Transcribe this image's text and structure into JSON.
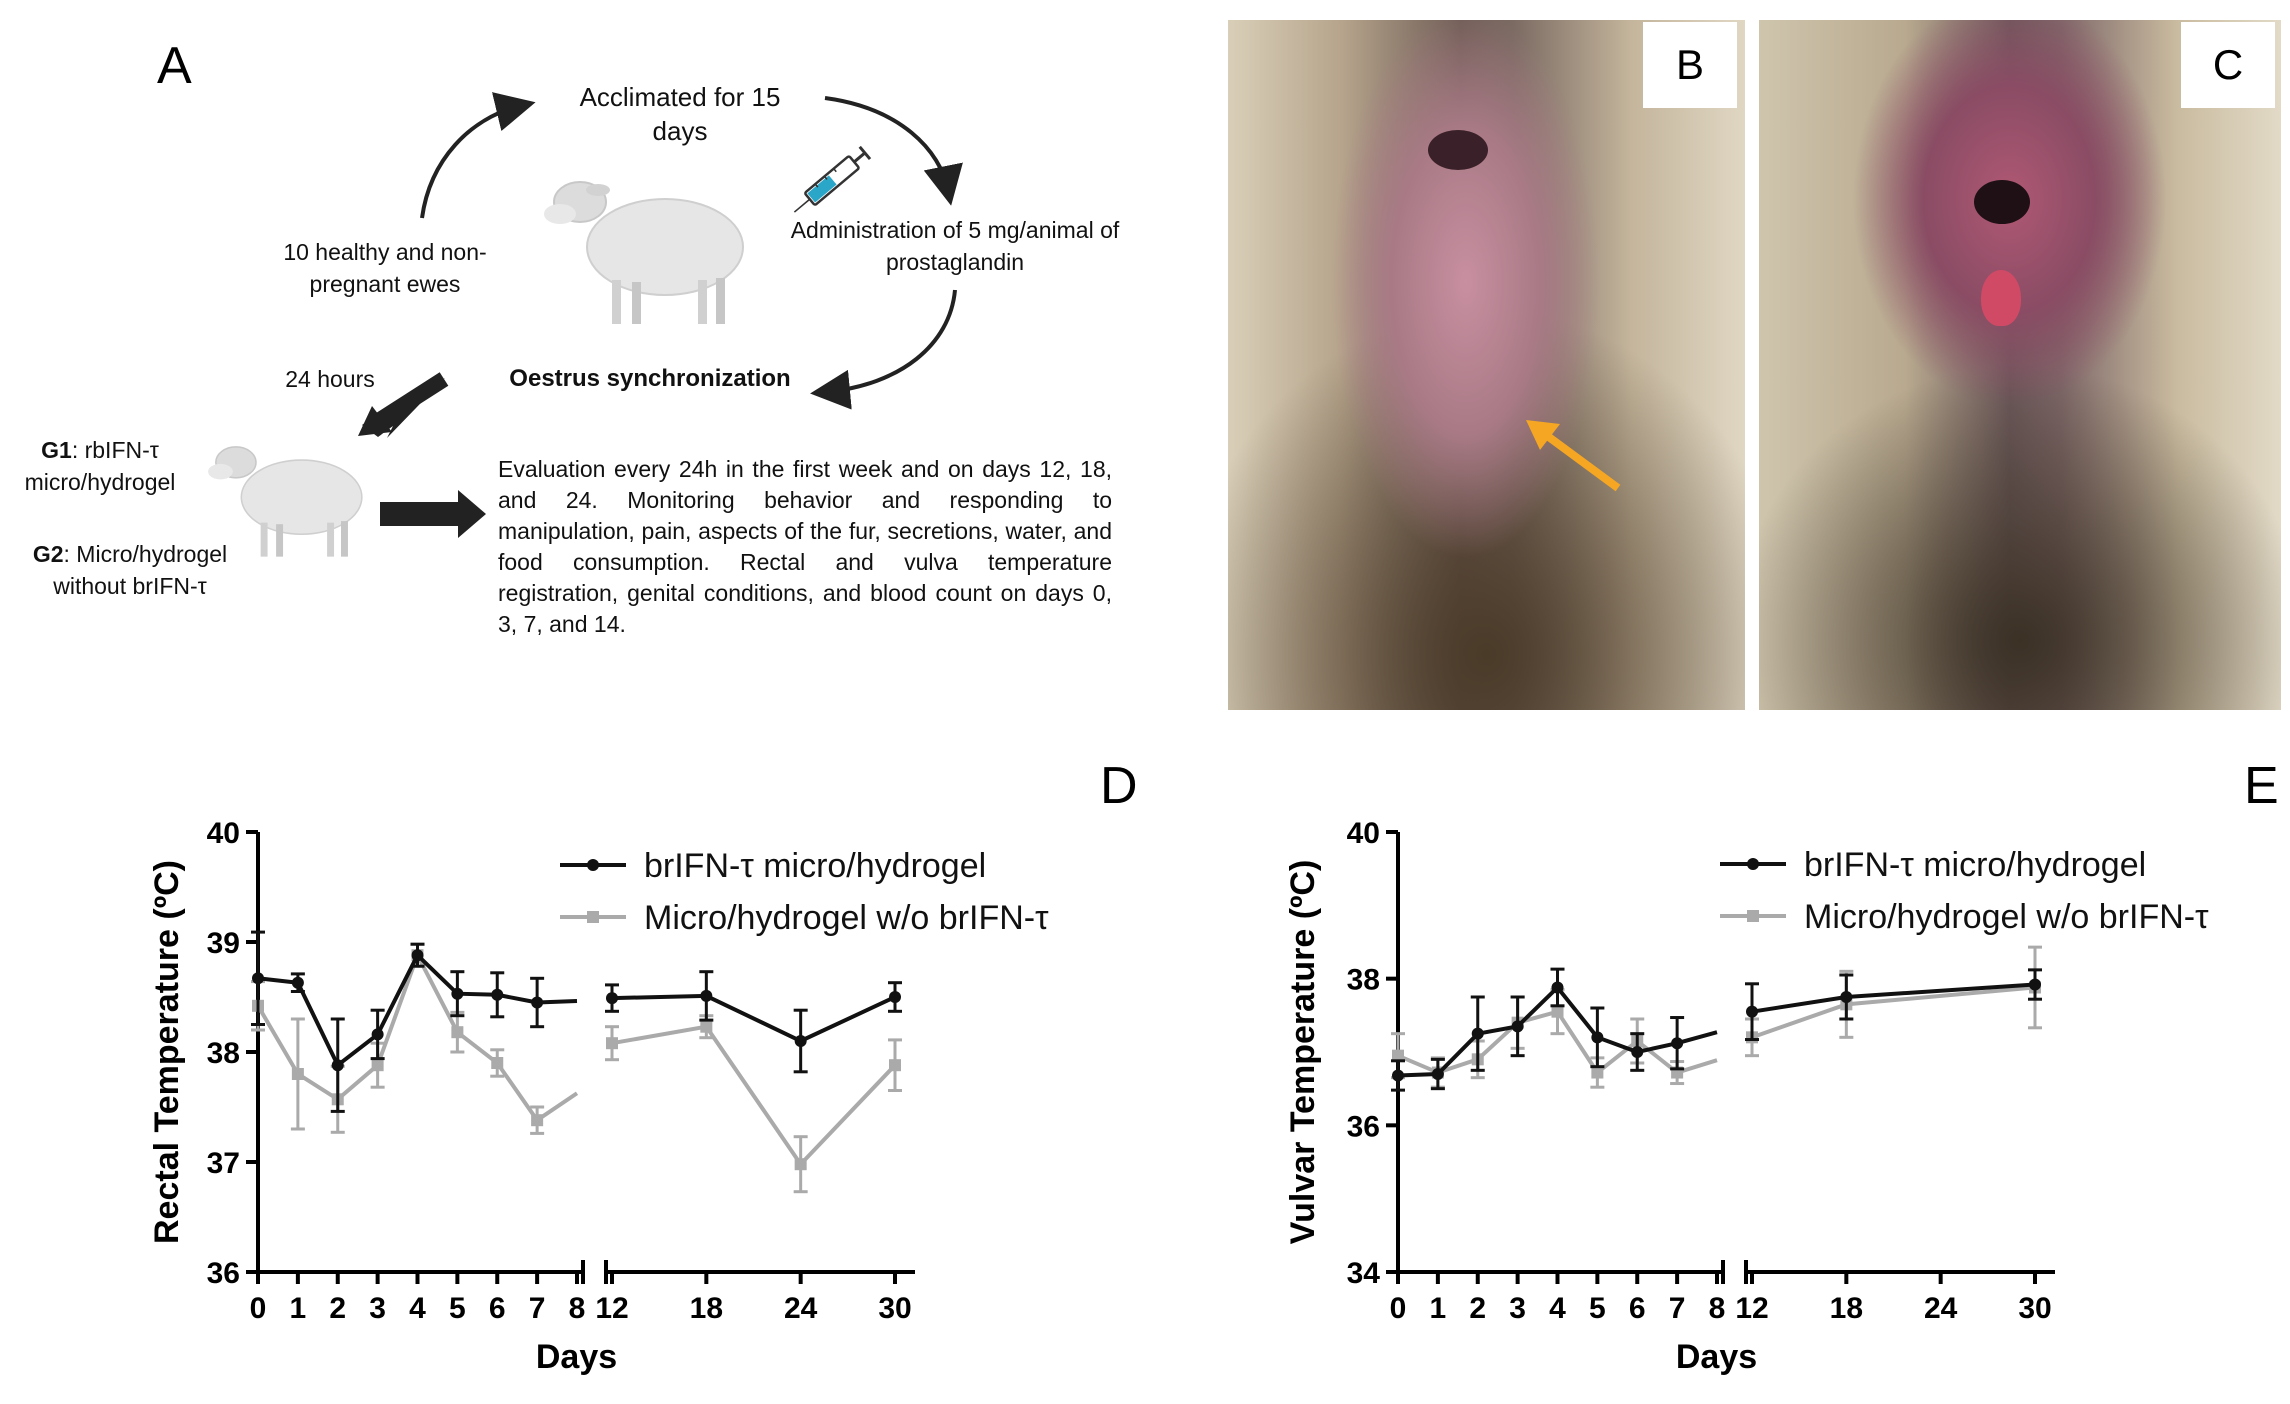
{
  "figure": {
    "panel_labels": {
      "a": "A",
      "b": "B",
      "c": "C",
      "d": "D",
      "e": "E"
    },
    "schema": {
      "acclimated": "Acclimated for 15 days",
      "ewes": "10 healthy and non-pregnant ewes",
      "administration": "Administration of 5 mg/animal of prostaglandin",
      "oestrus": "Oestrus synchronization",
      "hours": "24 hours",
      "g1_tag": "G1",
      "g1_text": ": rbIFN-τ micro/hydrogel",
      "g2_tag": "G2",
      "g2_text": ": Micro/hydrogel without brIFN-τ",
      "evaluation": "Evaluation every 24h in the first week and on days 12, 18, and 24. Monitoring behavior and responding to manipulation, pain, aspects of the fur, secretions, water, and food consumption. Rectal and vulva temperature registration, genital conditions, and blood count on days 0, 3, 7, and 14."
    },
    "icons": [
      "sheep-icon",
      "syringe-icon",
      "arrow-icon"
    ],
    "colors": {
      "treated": "#111111",
      "control": "#aaaaaa",
      "arrow_highlight": "#f5a623"
    }
  },
  "chart_data": [
    {
      "panel": "D",
      "type": "line",
      "ylabel": "Rectal Temperature (ºC)",
      "xlabel": "Days",
      "ylim": [
        36,
        40
      ],
      "yticks": [
        36,
        37,
        38,
        39,
        40
      ],
      "xticks": [
        0,
        1,
        2,
        3,
        4,
        5,
        6,
        7,
        8,
        12,
        18,
        24,
        30
      ],
      "broken_axis": true,
      "legend_position": "top-right",
      "series": [
        {
          "name": "brIFN-τ micro/hydrogel",
          "color": "#111111",
          "x": [
            0,
            1,
            2,
            3,
            4,
            5,
            6,
            7,
            12,
            18,
            24,
            30
          ],
          "y": [
            38.67,
            38.63,
            37.88,
            38.16,
            38.88,
            38.53,
            38.52,
            38.45,
            38.49,
            38.51,
            38.1,
            38.5
          ],
          "err": [
            0.42,
            0.08,
            0.42,
            0.22,
            0.1,
            0.2,
            0.2,
            0.22,
            0.12,
            0.22,
            0.28,
            0.13
          ]
        },
        {
          "name": "Micro/hydrogel w/o brIFN-τ",
          "color": "#aaaaaa",
          "x": [
            0,
            1,
            2,
            3,
            4,
            5,
            6,
            7,
            12,
            18,
            24,
            30
          ],
          "y": [
            38.42,
            37.8,
            37.57,
            37.88,
            38.88,
            38.18,
            37.9,
            37.38,
            38.08,
            38.23,
            36.98,
            37.88
          ],
          "err": [
            0.22,
            0.5,
            0.3,
            0.2,
            0.1,
            0.18,
            0.12,
            0.12,
            0.15,
            0.1,
            0.25,
            0.23
          ]
        }
      ]
    },
    {
      "panel": "E",
      "type": "line",
      "ylabel": "Vulvar Temperature (ºC)",
      "xlabel": "Days",
      "ylim": [
        34,
        40
      ],
      "yticks": [
        34,
        36,
        38,
        40
      ],
      "xticks": [
        0,
        1,
        2,
        3,
        4,
        5,
        6,
        7,
        8,
        12,
        18,
        24,
        30
      ],
      "broken_axis": true,
      "legend_position": "top-right",
      "series": [
        {
          "name": "brIFN-τ micro/hydrogel",
          "color": "#111111",
          "x": [
            0,
            1,
            2,
            3,
            4,
            5,
            6,
            7,
            12,
            18,
            30
          ],
          "y": [
            36.68,
            36.7,
            37.25,
            37.35,
            37.88,
            37.2,
            37.0,
            37.12,
            37.55,
            37.75,
            37.92
          ],
          "err": [
            0.2,
            0.2,
            0.5,
            0.4,
            0.25,
            0.4,
            0.25,
            0.35,
            0.38,
            0.3,
            0.2
          ]
        },
        {
          "name": "Micro/hydrogel w/o brIFN-τ",
          "color": "#aaaaaa",
          "x": [
            0,
            1,
            2,
            3,
            4,
            5,
            6,
            7,
            12,
            18,
            30
          ],
          "y": [
            36.95,
            36.72,
            36.9,
            37.4,
            37.55,
            36.72,
            37.15,
            36.72,
            37.2,
            37.65,
            37.88
          ],
          "err": [
            0.3,
            0.2,
            0.25,
            0.35,
            0.3,
            0.2,
            0.3,
            0.15,
            0.25,
            0.45,
            0.55
          ]
        }
      ]
    }
  ]
}
